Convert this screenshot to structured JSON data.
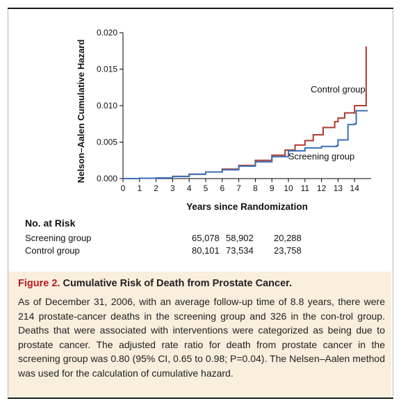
{
  "chart_data": {
    "type": "line",
    "step": true,
    "xlabel": "Years since Randomization",
    "ylabel": "Nelson–Aalen Cumulative Hazard",
    "xlim": [
      0,
      15
    ],
    "ylim": [
      0,
      0.02
    ],
    "x_ticks": [
      "0",
      "1",
      "2",
      "3",
      "4",
      "5",
      "6",
      "7",
      "8",
      "9",
      "10",
      "11",
      "12",
      "13",
      "14"
    ],
    "y_ticks": [
      "0.000",
      "0.005",
      "0.010",
      "0.015",
      "0.020"
    ],
    "grid": false,
    "series": [
      {
        "name": "Control group",
        "color": "#b03a2e",
        "x": [
          0,
          1,
          2,
          3,
          4,
          5,
          6,
          7,
          8,
          9,
          9.8,
          10.4,
          11,
          11.5,
          12.1,
          12.8,
          13.0,
          13.4,
          14.0,
          14.65,
          14.7,
          14.75
        ],
        "y": [
          0,
          5e-05,
          0.0001,
          0.0003,
          0.0006,
          0.0009,
          0.0013,
          0.0018,
          0.0025,
          0.0032,
          0.0039,
          0.0046,
          0.0052,
          0.006,
          0.007,
          0.0078,
          0.0083,
          0.009,
          0.01,
          0.01,
          0.018,
          0.018
        ]
      },
      {
        "name": "Screening group",
        "color": "#3b6fb5",
        "x": [
          0,
          1,
          2,
          3,
          4,
          5,
          6,
          7,
          8,
          9,
          10,
          11,
          12,
          12.9,
          13.0,
          13.5,
          13.6,
          14.0,
          14.1,
          14.75
        ],
        "y": [
          0,
          5e-05,
          0.0001,
          0.0003,
          0.0006,
          0.0009,
          0.0012,
          0.0017,
          0.0023,
          0.003,
          0.0038,
          0.0042,
          0.0044,
          0.0045,
          0.0053,
          0.0053,
          0.0074,
          0.0075,
          0.0093,
          0.0094
        ]
      }
    ],
    "annotations": [
      {
        "text": "Control group",
        "x": 13.0,
        "y": 0.0118
      },
      {
        "text": "Screening group",
        "x": 12.0,
        "y": 0.0026
      }
    ]
  },
  "risk_table": {
    "title": "No. at Risk",
    "rows": [
      {
        "label": "Screening group",
        "values": [
          "65,078",
          "58,902",
          "20,288"
        ]
      },
      {
        "label": "Control group",
        "values": [
          "80,101",
          "73,534",
          "23,758"
        ]
      }
    ]
  },
  "caption": {
    "label": "Figure 2.",
    "title": "Cumulative Risk of Death from Prostate Cancer.",
    "text": "As of December 31, 2006, with an average follow-up time of 8.8 years, there were 214 prostate-cancer deaths in the screening group and 326 in the con-trol group. Deaths that were associated with interventions were categorized as being due to prostate cancer. The adjusted rate ratio for death from prostate cancer in the screening group was 0.80 (95% CI, 0.65 to 0.98; P=0.04). The Nelsen–Aalen method was used for the calculation of cumulative hazard."
  }
}
